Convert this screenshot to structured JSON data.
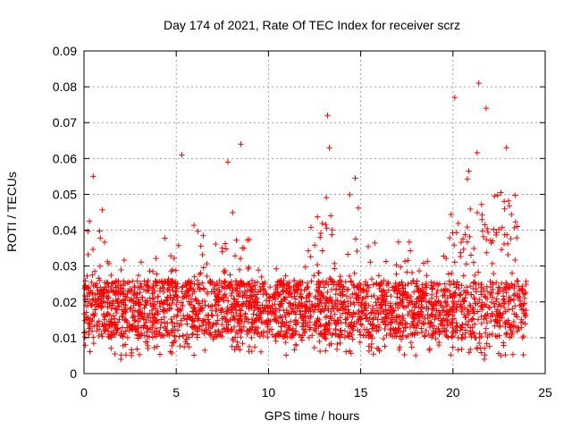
{
  "chart_data": {
    "type": "scatter",
    "title": "Day 174 of 2021, Rate Of TEC Index for receiver scrz",
    "xlabel": "GPS time / hours",
    "ylabel": "ROTI / TECUs",
    "xlim": [
      0,
      25
    ],
    "ylim": [
      0,
      0.09
    ],
    "x_ticks": [
      0,
      5,
      10,
      15,
      20,
      25
    ],
    "y_ticks": [
      0,
      0.01,
      0.02,
      0.03,
      0.04,
      0.05,
      0.06,
      0.07,
      0.08,
      0.09
    ],
    "x_tick_labels": [
      "0",
      "5",
      "10",
      "15",
      "20",
      "25"
    ],
    "y_tick_labels": [
      "0",
      "0.01",
      "0.02",
      "0.03",
      "0.04",
      "0.05",
      "0.06",
      "0.07",
      "0.08",
      "0.09"
    ],
    "grid": true,
    "marker": "+",
    "color": "#ff0000",
    "series": [
      {
        "name": "ROTI",
        "x_range": [
          0,
          24
        ],
        "baseline_min": 0.01,
        "baseline_max": 0.026,
        "note_peaks": [
          {
            "x": 0.5,
            "y": 0.055
          },
          {
            "x": 5.3,
            "y": 0.061
          },
          {
            "x": 7.8,
            "y": 0.059
          },
          {
            "x": 8.5,
            "y": 0.064
          },
          {
            "x": 13.2,
            "y": 0.072
          },
          {
            "x": 13.3,
            "y": 0.063
          },
          {
            "x": 20.1,
            "y": 0.077
          },
          {
            "x": 21.4,
            "y": 0.081
          },
          {
            "x": 21.8,
            "y": 0.074
          },
          {
            "x": 22.9,
            "y": 0.063
          },
          {
            "x": 2.0,
            "y": 0.004
          },
          {
            "x": 21.7,
            "y": 0.004
          }
        ]
      }
    ]
  }
}
